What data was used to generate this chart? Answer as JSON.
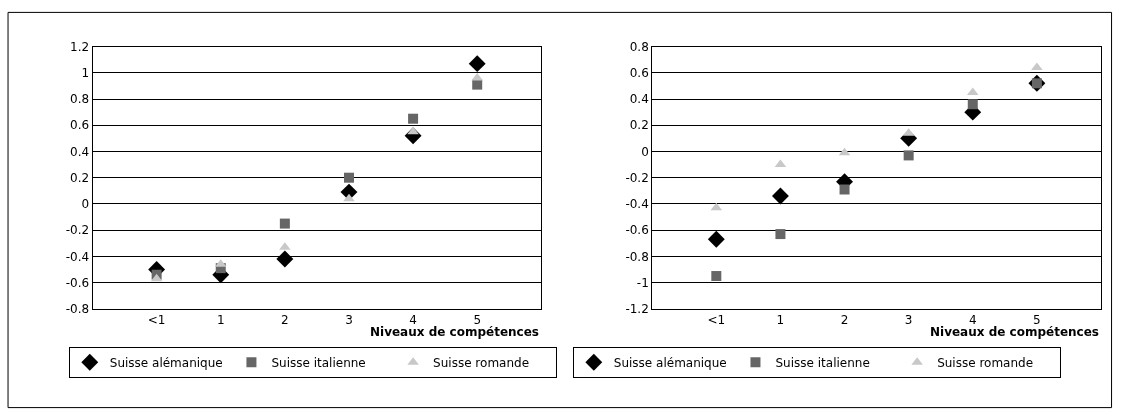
{
  "chart_data": [
    {
      "type": "scatter",
      "xlabel": "Niveaux de compétences",
      "categories": [
        "<1",
        "1",
        "2",
        "3",
        "4",
        "5"
      ],
      "ylim": [
        -0.8,
        1.2
      ],
      "yticks": [
        -0.8,
        -0.6,
        -0.4,
        -0.2,
        0,
        0.2,
        0.4,
        0.6,
        0.8,
        1,
        1.2
      ],
      "grid": "y",
      "legend": "bottom",
      "series": [
        {
          "name": "Suisse alémanique",
          "color": "#000000",
          "marker": "diamond",
          "values": [
            -0.5,
            -0.54,
            -0.42,
            0.09,
            0.52,
            1.07
          ]
        },
        {
          "name": "Suisse italienne",
          "color": "#666666",
          "marker": "square",
          "values": [
            -0.54,
            -0.49,
            -0.15,
            0.2,
            0.65,
            0.91
          ]
        },
        {
          "name": "Suisse romande",
          "color": "#c8c8c8",
          "marker": "triangle",
          "values": [
            -0.57,
            -0.46,
            -0.33,
            0.04,
            0.55,
            0.96
          ]
        }
      ]
    },
    {
      "type": "scatter",
      "xlabel": "Niveaux de compétences",
      "categories": [
        "<1",
        "1",
        "2",
        "3",
        "4",
        "5"
      ],
      "ylim": [
        -1.2,
        0.8
      ],
      "yticks": [
        -1.2,
        -1,
        -0.8,
        -0.6,
        -0.4,
        -0.2,
        0,
        0.2,
        0.4,
        0.6,
        0.8
      ],
      "grid": "y",
      "legend": "bottom",
      "series": [
        {
          "name": "Suisse alémanique",
          "color": "#000000",
          "marker": "diamond",
          "values": [
            -0.67,
            -0.34,
            -0.23,
            0.1,
            0.3,
            0.52
          ]
        },
        {
          "name": "Suisse italienne",
          "color": "#666666",
          "marker": "square",
          "values": [
            -0.95,
            -0.63,
            -0.29,
            -0.03,
            0.36,
            0.52
          ]
        },
        {
          "name": "Suisse romande",
          "color": "#c8c8c8",
          "marker": "triangle",
          "values": [
            -0.43,
            -0.1,
            -0.01,
            0.14,
            0.45,
            0.64
          ]
        }
      ]
    }
  ]
}
